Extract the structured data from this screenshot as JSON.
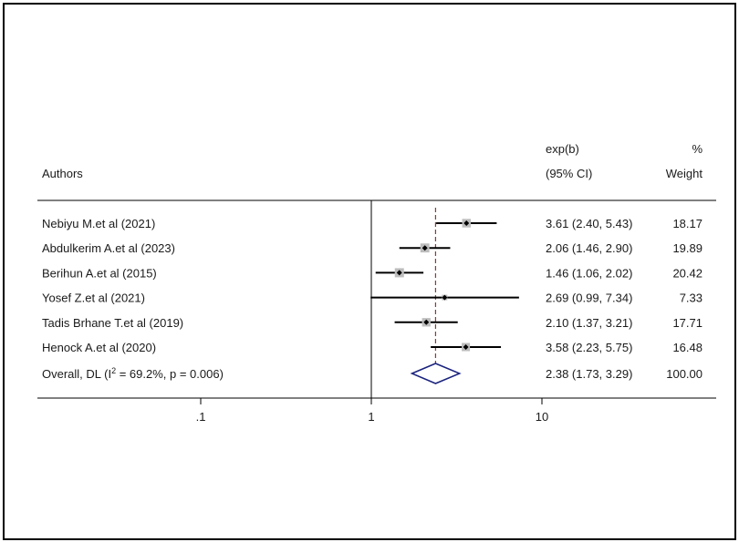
{
  "chart_data": {
    "type": "forest",
    "title": "",
    "x_scale": "log",
    "xlim": [
      0.05,
      20
    ],
    "x_ticks": [
      {
        "value": 0.1,
        "label": ".1"
      },
      {
        "value": 1,
        "label": "1"
      },
      {
        "value": 10,
        "label": "10"
      }
    ],
    "header": {
      "authors": "Authors",
      "effect_line1": "exp(b)",
      "effect_line2": "(95% CI)",
      "weight_line1": "%",
      "weight_line2": "Weight"
    },
    "studies": [
      {
        "label": "Nebiyu M.et al (2021)",
        "est": 3.61,
        "lo": 2.4,
        "hi": 5.43,
        "ci_text": "3.61 (2.40, 5.43)",
        "weight": "18.17"
      },
      {
        "label": "Abdulkerim A.et al (2023)",
        "est": 2.06,
        "lo": 1.46,
        "hi": 2.9,
        "ci_text": "2.06 (1.46, 2.90)",
        "weight": "19.89"
      },
      {
        "label": "Berihun A.et al (2015)",
        "est": 1.46,
        "lo": 1.06,
        "hi": 2.02,
        "ci_text": "1.46 (1.06, 2.02)",
        "weight": "20.42"
      },
      {
        "label": "Yosef Z.et al (2021)",
        "est": 2.69,
        "lo": 0.99,
        "hi": 7.34,
        "ci_text": "2.69 (0.99, 7.34)",
        "weight": "7.33"
      },
      {
        "label": "Tadis Brhane T.et al (2019)",
        "est": 2.1,
        "lo": 1.37,
        "hi": 3.21,
        "ci_text": "2.10 (1.37, 3.21)",
        "weight": "17.71"
      },
      {
        "label": "Henock A.et al (2020)",
        "est": 3.58,
        "lo": 2.23,
        "hi": 5.75,
        "ci_text": "3.58 (2.23, 5.75)",
        "weight": "16.48"
      }
    ],
    "overall": {
      "label_prefix": "Overall, DL (I",
      "label_sup": "2",
      "label_suffix": " = 69.2%, p = 0.006)",
      "est": 2.38,
      "lo": 1.73,
      "hi": 3.29,
      "ci_text": "2.38 (1.73, 3.29)",
      "weight": "100.00"
    },
    "reference_line": 1,
    "colors": {
      "ci_line": "#000000",
      "weight_box": "#bdbdbd",
      "point": "#000000",
      "overall_diamond": "#1a237e",
      "overall_line": "#8b3a3a"
    }
  }
}
